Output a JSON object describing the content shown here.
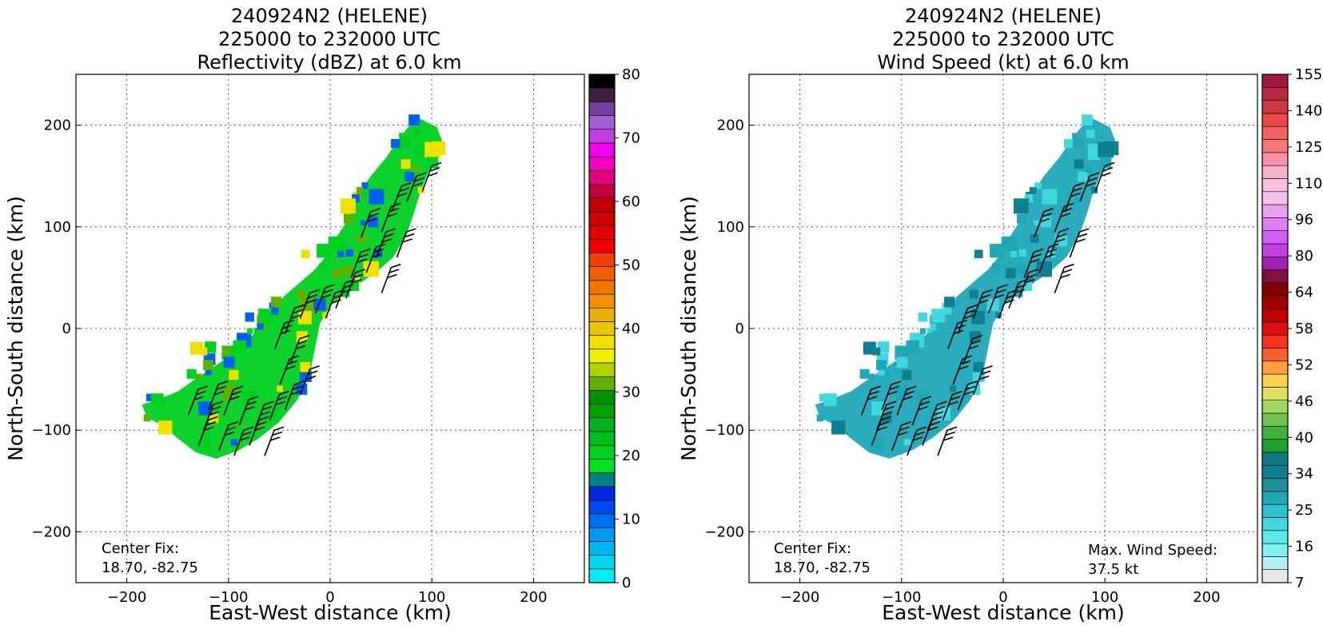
{
  "chart_data": [
    {
      "type": "heatmap",
      "title_lines": [
        "240924N2 (HELENE)",
        "225000 to 232000 UTC",
        "Reflectivity (dBZ) at 6.0 km"
      ],
      "xlabel": "East-West distance (km)",
      "ylabel": "North-South distance (km)",
      "xlim": [
        -250,
        250
      ],
      "ylim": [
        -250,
        250
      ],
      "xticks": [
        -200,
        -100,
        0,
        100,
        200
      ],
      "yticks": [
        -200,
        -100,
        0,
        100,
        200
      ],
      "xtick_labels": [
        "−200",
        "−100",
        "0",
        "100",
        "200"
      ],
      "ytick_labels": [
        "−200",
        "−100",
        "0",
        "100",
        "200"
      ],
      "grid": true,
      "annotations": {
        "center_fix_label": "Center Fix:",
        "center_fix_value": "18.70, -82.75"
      },
      "colorbar": {
        "range": [
          0,
          80
        ],
        "tick_values": [
          0,
          10,
          20,
          30,
          40,
          50,
          60,
          70,
          80
        ],
        "tick_labels": [
          "0",
          "10",
          "20",
          "30",
          "40",
          "50",
          "60",
          "70",
          "80"
        ],
        "colors": [
          "#00f0f0",
          "#00d8f0",
          "#00b8f0",
          "#0098f0",
          "#0070f0",
          "#0048f0",
          "#0028e0",
          "#008080",
          "#00e020",
          "#00d020",
          "#00c020",
          "#00b020",
          "#00a000",
          "#009000",
          "#60b000",
          "#b0d000",
          "#f0f000",
          "#f0e000",
          "#e8c800",
          "#e8b000",
          "#f09000",
          "#f07800",
          "#f06000",
          "#f04000",
          "#f00000",
          "#e00000",
          "#d00000",
          "#c00000",
          "#c00040",
          "#e00080",
          "#f000c0",
          "#f000f0",
          "#c040e0",
          "#a060d0",
          "#7040a0",
          "#402040",
          "#000000"
        ]
      },
      "echo_scale": [
        {
          "value": 12,
          "color": "#0060f0"
        },
        {
          "value": 24,
          "color": "#00d020"
        },
        {
          "value": 30,
          "color": "#60b000"
        },
        {
          "value": 38,
          "color": "#f0e000"
        }
      ]
    },
    {
      "type": "heatmap",
      "title_lines": [
        "240924N2 (HELENE)",
        "225000 to 232000 UTC",
        "Wind Speed (kt) at 6.0 km"
      ],
      "xlabel": "East-West distance (km)",
      "ylabel": "North-South distance (km)",
      "xlim": [
        -250,
        250
      ],
      "ylim": [
        -250,
        250
      ],
      "xticks": [
        -200,
        -100,
        0,
        100,
        200
      ],
      "yticks": [
        -200,
        -100,
        0,
        100,
        200
      ],
      "xtick_labels": [
        "−200",
        "−100",
        "0",
        "100",
        "200"
      ],
      "ytick_labels": [
        "−200",
        "−100",
        "0",
        "100",
        "200"
      ],
      "grid": true,
      "annotations": {
        "center_fix_label": "Center Fix:",
        "center_fix_value": "18.70, -82.75",
        "max_wind_label": "Max. Wind Speed:",
        "max_wind_value": "37.5 kt"
      },
      "colorbar": {
        "tick_labels": [
          "7",
          "16",
          "25",
          "34",
          "40",
          "46",
          "52",
          "58",
          "64",
          "80",
          "96",
          "110",
          "125",
          "140",
          "155"
        ],
        "colors": [
          "#e8e8e8",
          "#b0f0f0",
          "#80f0f0",
          "#60e8e8",
          "#40d8e0",
          "#30c0d0",
          "#20a8b8",
          "#209098",
          "#108090",
          "#107880",
          "#20a030",
          "#40b040",
          "#70c050",
          "#a0d860",
          "#e0e060",
          "#f8d050",
          "#f8a040",
          "#f86030",
          "#f83020",
          "#e01010",
          "#c00000",
          "#a00000",
          "#800000",
          "#801040",
          "#a020b0",
          "#c040e0",
          "#d060f0",
          "#e080f0",
          "#e8a0f0",
          "#f0c0e8",
          "#f8c0e0",
          "#f8b0c8",
          "#f890a8",
          "#f87878",
          "#f06060",
          "#e84848",
          "#d03840",
          "#b82840",
          "#a01840"
        ]
      },
      "echo_scale": [
        {
          "value": 18,
          "color": "#40d8e0"
        },
        {
          "value": 24,
          "color": "#20a8b8"
        },
        {
          "value": 28,
          "color": "#108090"
        }
      ]
    }
  ]
}
